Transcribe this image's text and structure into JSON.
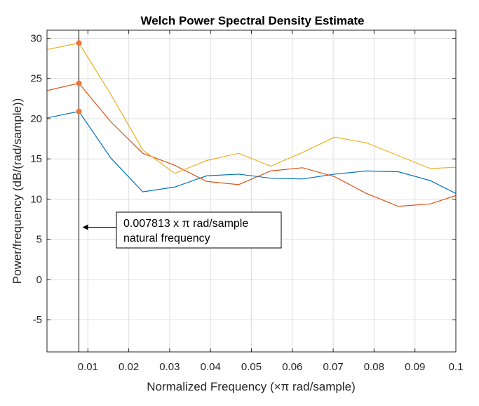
{
  "chart_data": {
    "type": "line",
    "title": "Welch Power Spectral Density Estimate",
    "xlabel": "Normalized Frequency  (×π rad/sample)",
    "ylabel": "Power/frequency (dB/(rad/sample))",
    "xlim": [
      0.0,
      0.1
    ],
    "ylim": [
      -9,
      31
    ],
    "xticks": [
      0.01,
      0.02,
      0.03,
      0.04,
      0.05,
      0.06,
      0.07,
      0.08,
      0.09,
      0.1
    ],
    "xtick_labels": [
      "0.01",
      "0.02",
      "0.03",
      "0.04",
      "0.05",
      "0.06",
      "0.07",
      "0.08",
      "0.09",
      "0.1"
    ],
    "yticks": [
      -5,
      0,
      5,
      10,
      15,
      20,
      25,
      30
    ],
    "ytick_labels": [
      "-5",
      "0",
      "5",
      "10",
      "15",
      "20",
      "25",
      "30"
    ],
    "grid": true,
    "x": [
      0.0,
      0.0078125,
      0.015625,
      0.0234375,
      0.03125,
      0.0390625,
      0.046875,
      0.0546875,
      0.0625,
      0.0703125,
      0.078125,
      0.0859375,
      0.09375,
      0.1015625
    ],
    "series": [
      {
        "color": "#0072BD",
        "values": [
          20.1,
          20.9,
          15.1,
          10.9,
          11.5,
          12.9,
          13.1,
          12.6,
          12.5,
          13.1,
          13.5,
          13.4,
          12.3,
          10.3
        ]
      },
      {
        "color": "#D95319",
        "values": [
          23.5,
          24.4,
          19.6,
          15.7,
          14.2,
          12.2,
          11.8,
          13.5,
          13.9,
          12.8,
          10.7,
          9.1,
          9.4,
          10.7
        ]
      },
      {
        "color": "#EDB120",
        "values": [
          28.6,
          29.4,
          23.0,
          16.1,
          13.2,
          14.8,
          15.7,
          14.1,
          15.8,
          17.7,
          17.0,
          15.4,
          13.8,
          14.0
        ]
      }
    ],
    "marker_line": {
      "x": 0.0078125,
      "markers": [
        20.9,
        24.4,
        29.4
      ],
      "marker_color": "#EE7733"
    },
    "annotation": {
      "lines": [
        "0.007813 x π rad/sample",
        "natural frequency"
      ],
      "arrow_target_y": 6.5
    }
  }
}
